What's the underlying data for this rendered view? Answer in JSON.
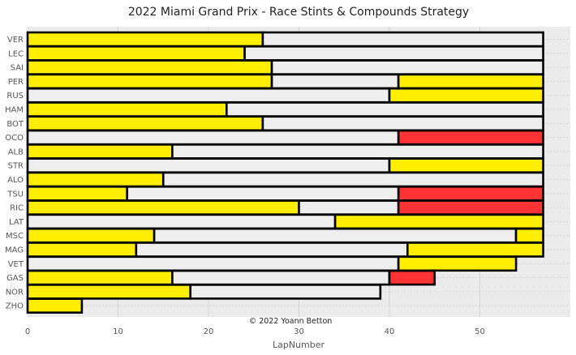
{
  "chart_data": {
    "type": "bar",
    "orientation": "horizontal-stacked",
    "title": "2022 Miami Grand Prix - Race Stints & Compounds Strategy",
    "xlabel": "LapNumber",
    "ylabel": "",
    "xlim": [
      0,
      60
    ],
    "xticks": [
      0,
      10,
      20,
      30,
      40,
      50
    ],
    "grid": true,
    "annotation": "© 2022 Yoann Betton",
    "compound_colors": {
      "MEDIUM": "#ffee00",
      "HARD": "#eeeeee",
      "SOFT": "#ff3333"
    },
    "drivers": [
      {
        "name": "VER",
        "stints": [
          {
            "compound": "MEDIUM",
            "laps": 26
          },
          {
            "compound": "HARD",
            "laps": 31
          }
        ]
      },
      {
        "name": "LEC",
        "stints": [
          {
            "compound": "MEDIUM",
            "laps": 24
          },
          {
            "compound": "HARD",
            "laps": 33
          }
        ]
      },
      {
        "name": "SAI",
        "stints": [
          {
            "compound": "MEDIUM",
            "laps": 27
          },
          {
            "compound": "HARD",
            "laps": 30
          }
        ]
      },
      {
        "name": "PER",
        "stints": [
          {
            "compound": "MEDIUM",
            "laps": 27
          },
          {
            "compound": "HARD",
            "laps": 14
          },
          {
            "compound": "MEDIUM",
            "laps": 16
          }
        ]
      },
      {
        "name": "RUS",
        "stints": [
          {
            "compound": "HARD",
            "laps": 40
          },
          {
            "compound": "MEDIUM",
            "laps": 17
          }
        ]
      },
      {
        "name": "HAM",
        "stints": [
          {
            "compound": "MEDIUM",
            "laps": 22
          },
          {
            "compound": "HARD",
            "laps": 35
          }
        ]
      },
      {
        "name": "BOT",
        "stints": [
          {
            "compound": "MEDIUM",
            "laps": 26
          },
          {
            "compound": "HARD",
            "laps": 31
          }
        ]
      },
      {
        "name": "OCO",
        "stints": [
          {
            "compound": "HARD",
            "laps": 41
          },
          {
            "compound": "SOFT",
            "laps": 16
          }
        ]
      },
      {
        "name": "ALB",
        "stints": [
          {
            "compound": "MEDIUM",
            "laps": 16
          },
          {
            "compound": "HARD",
            "laps": 41
          }
        ]
      },
      {
        "name": "STR",
        "stints": [
          {
            "compound": "HARD",
            "laps": 40
          },
          {
            "compound": "MEDIUM",
            "laps": 17
          }
        ]
      },
      {
        "name": "ALO",
        "stints": [
          {
            "compound": "MEDIUM",
            "laps": 15
          },
          {
            "compound": "HARD",
            "laps": 42
          }
        ]
      },
      {
        "name": "TSU",
        "stints": [
          {
            "compound": "MEDIUM",
            "laps": 11
          },
          {
            "compound": "HARD",
            "laps": 30
          },
          {
            "compound": "SOFT",
            "laps": 16
          }
        ]
      },
      {
        "name": "RIC",
        "stints": [
          {
            "compound": "MEDIUM",
            "laps": 30
          },
          {
            "compound": "HARD",
            "laps": 11
          },
          {
            "compound": "SOFT",
            "laps": 16
          }
        ]
      },
      {
        "name": "LAT",
        "stints": [
          {
            "compound": "HARD",
            "laps": 34
          },
          {
            "compound": "MEDIUM",
            "laps": 23
          }
        ]
      },
      {
        "name": "MSC",
        "stints": [
          {
            "compound": "MEDIUM",
            "laps": 14
          },
          {
            "compound": "HARD",
            "laps": 40
          },
          {
            "compound": "MEDIUM",
            "laps": 3
          }
        ]
      },
      {
        "name": "MAG",
        "stints": [
          {
            "compound": "MEDIUM",
            "laps": 12
          },
          {
            "compound": "HARD",
            "laps": 30
          },
          {
            "compound": "MEDIUM",
            "laps": 15
          }
        ]
      },
      {
        "name": "VET",
        "stints": [
          {
            "compound": "HARD",
            "laps": 41
          },
          {
            "compound": "MEDIUM",
            "laps": 13
          }
        ]
      },
      {
        "name": "GAS",
        "stints": [
          {
            "compound": "MEDIUM",
            "laps": 16
          },
          {
            "compound": "HARD",
            "laps": 24
          },
          {
            "compound": "SOFT",
            "laps": 5
          }
        ]
      },
      {
        "name": "NOR",
        "stints": [
          {
            "compound": "MEDIUM",
            "laps": 18
          },
          {
            "compound": "HARD",
            "laps": 21
          }
        ]
      },
      {
        "name": "ZHO",
        "stints": [
          {
            "compound": "MEDIUM",
            "laps": 6
          }
        ]
      }
    ]
  }
}
